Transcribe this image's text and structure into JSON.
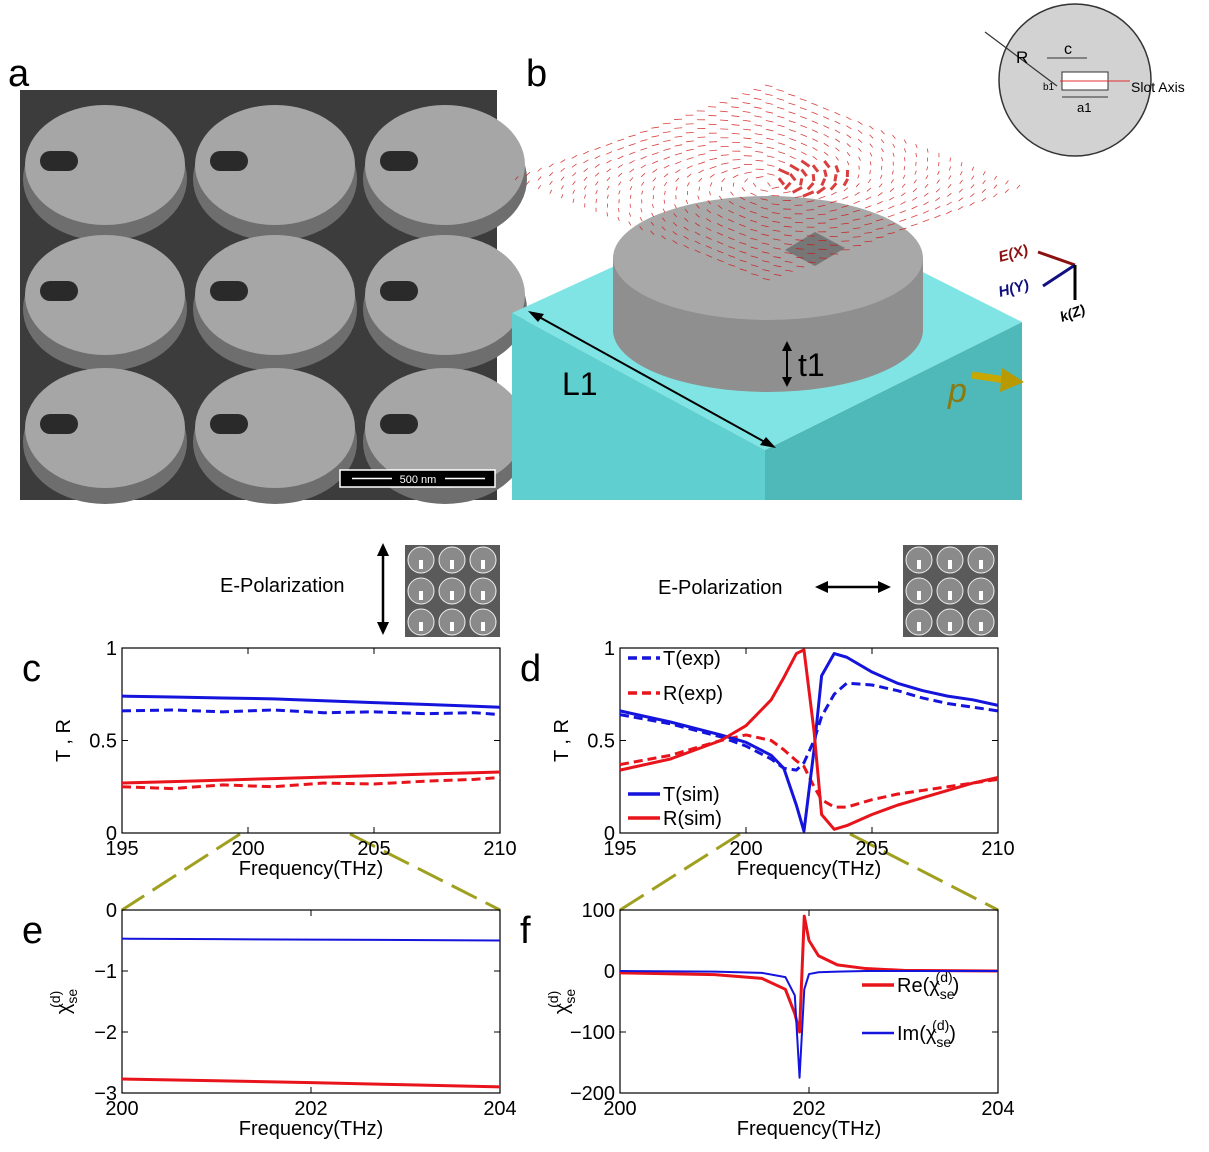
{
  "figure": {
    "panel_a": "a",
    "panel_b": "b",
    "scale_bar": "500 nm",
    "length_label": "L1",
    "thickness_label": "t1",
    "dipole_label": "p",
    "axis_e": "E(X)",
    "axis_h": "H(Y)",
    "axis_k": "k(Z)",
    "inset_radius": "R",
    "inset_c": "c",
    "inset_b1": "b1",
    "inset_a1": "a1",
    "inset_slot_axis": "Slot Axis",
    "polarization_left": "E-Polarization",
    "polarization_right": "E-Polarization"
  },
  "chart_data": [
    {
      "type": "line",
      "panel": "c",
      "xlabel": "Frequency(THz)",
      "ylabel": "T , R",
      "x": [
        195,
        197,
        199,
        201,
        203,
        205,
        207,
        209,
        210
      ],
      "xlim": [
        195,
        210
      ],
      "xticks": [
        195,
        200,
        205,
        210
      ],
      "ylim": [
        0,
        1
      ],
      "yticks": [
        0,
        0.5,
        1
      ],
      "series": [
        {
          "color": "#1414dc",
          "dashed": false,
          "line_width": 3,
          "values": [
            0.74,
            0.735,
            0.73,
            0.725,
            0.715,
            0.705,
            0.695,
            0.685,
            0.68
          ]
        },
        {
          "color": "#1414dc",
          "dashed": true,
          "line_width": 3,
          "values": [
            0.66,
            0.665,
            0.655,
            0.665,
            0.65,
            0.655,
            0.645,
            0.65,
            0.64
          ]
        },
        {
          "color": "#e8141b",
          "dashed": false,
          "line_width": 3,
          "values": [
            0.27,
            0.278,
            0.286,
            0.294,
            0.302,
            0.31,
            0.318,
            0.326,
            0.33
          ]
        },
        {
          "color": "#e8141b",
          "dashed": true,
          "line_width": 3,
          "values": [
            0.25,
            0.24,
            0.26,
            0.25,
            0.27,
            0.265,
            0.28,
            0.29,
            0.3
          ]
        }
      ]
    },
    {
      "type": "line",
      "panel": "d",
      "xlabel": "Frequency(THz)",
      "ylabel": "T , R",
      "x": [
        195,
        197,
        199,
        200,
        201,
        201.5,
        202,
        202.3,
        202.7,
        203,
        203.5,
        204,
        205,
        206,
        207,
        208,
        209,
        210
      ],
      "xlim": [
        195,
        210
      ],
      "xticks": [
        195,
        200,
        205,
        210
      ],
      "ylim": [
        0,
        1
      ],
      "yticks": [
        0,
        0.5,
        1
      ],
      "legend": true,
      "series": [
        {
          "name": "T(exp)",
          "color": "#1414dc",
          "dashed": true,
          "line_width": 3,
          "values": [
            0.64,
            0.59,
            0.52,
            0.47,
            0.4,
            0.35,
            0.34,
            0.38,
            0.5,
            0.63,
            0.75,
            0.81,
            0.8,
            0.77,
            0.73,
            0.7,
            0.68,
            0.66
          ]
        },
        {
          "name": "R(exp)",
          "color": "#e8141b",
          "dashed": true,
          "line_width": 3,
          "values": [
            0.37,
            0.42,
            0.5,
            0.53,
            0.5,
            0.45,
            0.39,
            0.36,
            0.25,
            0.18,
            0.14,
            0.14,
            0.18,
            0.21,
            0.23,
            0.25,
            0.27,
            0.29
          ]
        },
        {
          "name": "T(sim)",
          "color": "#1414dc",
          "dashed": false,
          "line_width": 3,
          "values": [
            0.66,
            0.6,
            0.53,
            0.49,
            0.42,
            0.35,
            0.15,
            0.01,
            0.45,
            0.85,
            0.97,
            0.95,
            0.87,
            0.81,
            0.77,
            0.74,
            0.72,
            0.69
          ]
        },
        {
          "name": "R(sim)",
          "color": "#e8141b",
          "dashed": false,
          "line_width": 3,
          "values": [
            0.34,
            0.4,
            0.5,
            0.58,
            0.72,
            0.84,
            0.97,
            0.99,
            0.55,
            0.1,
            0.02,
            0.04,
            0.1,
            0.15,
            0.19,
            0.23,
            0.27,
            0.3
          ]
        }
      ]
    },
    {
      "type": "line",
      "panel": "e",
      "xlabel": "Frequency(THz)",
      "ylabel": [
        "χ",
        "se",
        "(d)"
      ],
      "x": [
        200,
        201,
        202,
        203,
        204
      ],
      "xlim": [
        200,
        204
      ],
      "xticks": [
        200,
        202,
        204
      ],
      "ylim": [
        -3,
        0
      ],
      "yticks": [
        {
          "value": -3,
          "label": "−3"
        },
        {
          "value": -2,
          "label": "−2"
        },
        {
          "value": -1,
          "label": "−1"
        },
        0
      ],
      "series": [
        {
          "color": "#1414dc",
          "dashed": false,
          "line_width": 2,
          "values": [
            -0.47,
            -0.478,
            -0.485,
            -0.492,
            -0.5
          ]
        },
        {
          "color": "#e8141b",
          "dashed": false,
          "line_width": 3,
          "values": [
            -2.77,
            -2.8,
            -2.83,
            -2.865,
            -2.9
          ]
        }
      ]
    },
    {
      "type": "line",
      "panel": "f",
      "xlabel": "Frequency(THz)",
      "ylabel": [
        "χ",
        "se",
        "(d)"
      ],
      "x": [
        200,
        201,
        201.5,
        201.75,
        201.85,
        201.9,
        201.95,
        202,
        202.1,
        202.3,
        202.6,
        203,
        204
      ],
      "xlim": [
        200,
        204
      ],
      "xticks": [
        200,
        202,
        204
      ],
      "ylim": [
        -200,
        100
      ],
      "yticks": [
        {
          "value": -200,
          "label": "−200"
        },
        {
          "value": -100,
          "label": "−100"
        },
        0,
        100
      ],
      "legend": true,
      "series": [
        {
          "name": [
            "Re(χ",
            "se",
            "(d)",
            ")"
          ],
          "color": "#e8141b",
          "dashed": false,
          "line_width": 3,
          "values": [
            -3,
            -6,
            -12,
            -30,
            -70,
            -100,
            90,
            50,
            25,
            10,
            4,
            1,
            0
          ]
        },
        {
          "name": [
            "Im(χ",
            "se",
            "(d)",
            ")"
          ],
          "color": "#1414dc",
          "dashed": false,
          "line_width": 2,
          "values": [
            0,
            -1,
            -3,
            -10,
            -40,
            -175,
            -30,
            -5,
            -2,
            -1,
            0,
            0,
            0
          ]
        }
      ]
    }
  ]
}
